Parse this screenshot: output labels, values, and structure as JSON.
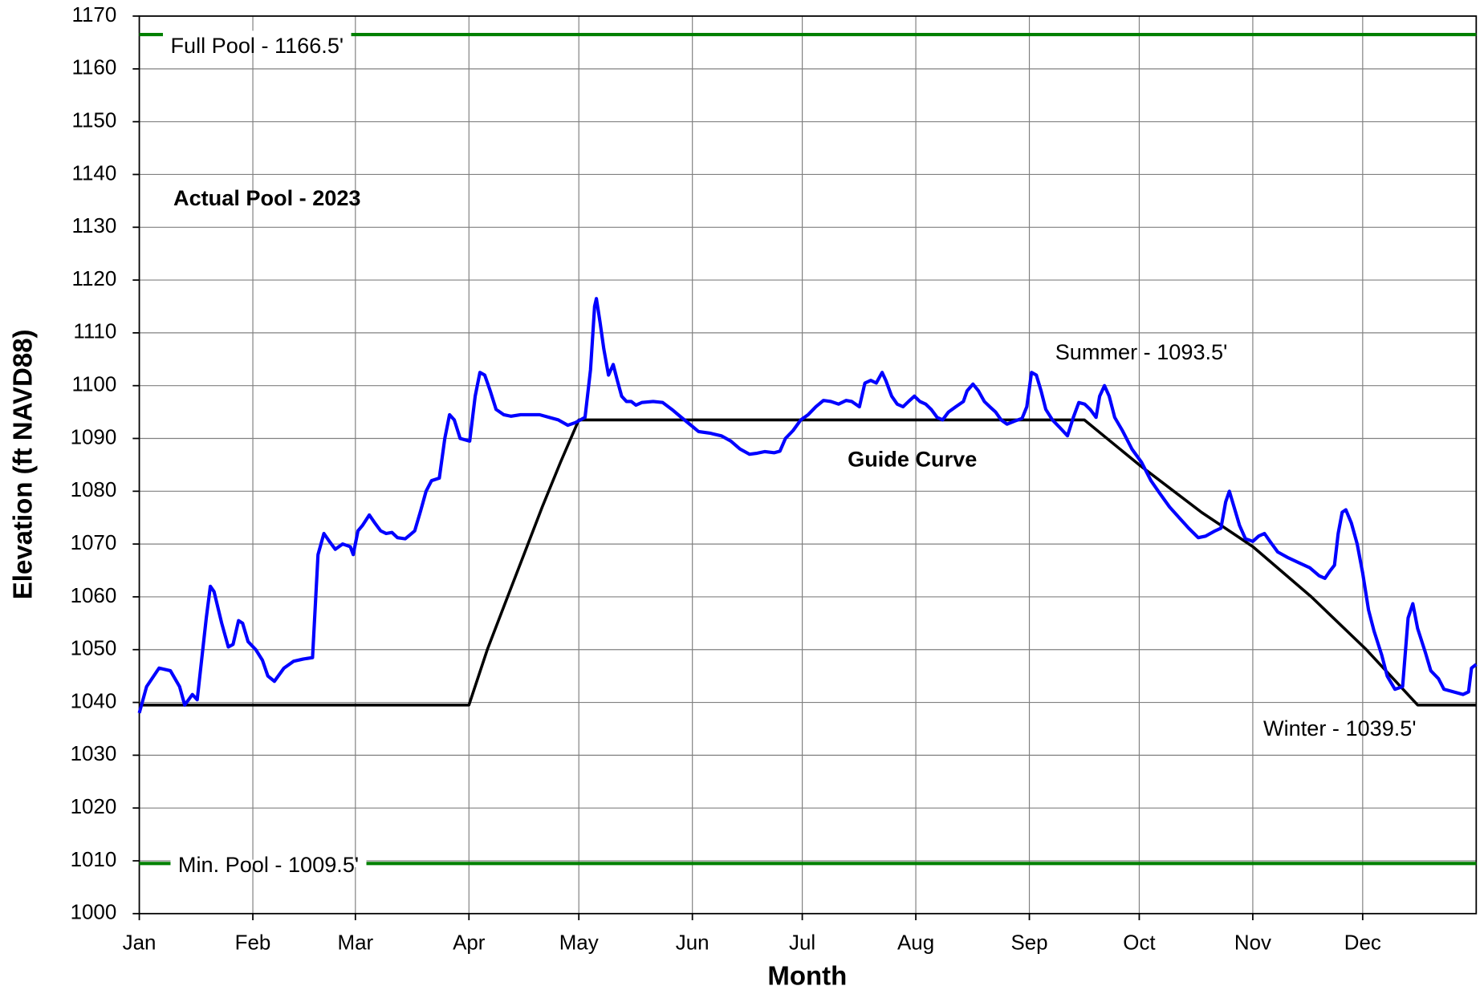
{
  "chart_data": {
    "type": "line",
    "xlabel": "Month",
    "ylabel": "Elevation (ft NAVD88)",
    "xlim": [
      0,
      365
    ],
    "ylim": [
      1000,
      1170
    ],
    "xticks": [
      {
        "value": 0,
        "label": "Jan"
      },
      {
        "value": 31,
        "label": "Feb"
      },
      {
        "value": 59,
        "label": "Mar"
      },
      {
        "value": 90,
        "label": "Apr"
      },
      {
        "value": 120,
        "label": "May"
      },
      {
        "value": 151,
        "label": "Jun"
      },
      {
        "value": 181,
        "label": "Jul"
      },
      {
        "value": 212,
        "label": "Aug"
      },
      {
        "value": 243,
        "label": "Sep"
      },
      {
        "value": 273,
        "label": "Oct"
      },
      {
        "value": 304,
        "label": "Nov"
      },
      {
        "value": 334,
        "label": "Dec"
      }
    ],
    "yticks": [
      1000,
      1010,
      1020,
      1030,
      1040,
      1050,
      1060,
      1070,
      1080,
      1090,
      1100,
      1110,
      1120,
      1130,
      1140,
      1150,
      1160,
      1170
    ],
    "grid": true,
    "series": [
      {
        "name": "Actual Pool - 2023",
        "color": "#0000ff",
        "x": [
          0,
          2,
          5.4,
          8.5,
          11,
          12.4,
          14.5,
          15.8,
          18.3,
          19.4,
          20.4,
          22.5,
          24.3,
          25.6,
          27.1,
          28.2,
          29.7,
          31.8,
          33.6,
          35.1,
          36.9,
          39.5,
          42.1,
          44.7,
          47.3,
          48.8,
          50.4,
          51.9,
          53.5,
          55.5,
          57.6,
          58.4,
          59.7,
          60.9,
          62.8,
          64.3,
          65.9,
          67.4,
          69,
          70.5,
          72.6,
          75.2,
          76.7,
          78.3,
          79.8,
          81.9,
          83.4,
          84.7,
          86,
          87.6,
          90.2,
          91.7,
          93,
          94.3,
          95.8,
          97.4,
          99.5,
          101.5,
          104.1,
          106.7,
          109.3,
          111.9,
          114.4,
          117,
          119.1,
          121.7,
          123.2,
          124.3,
          124.8,
          125.8,
          126.8,
          128.1,
          129.4,
          130.5,
          131.7,
          133,
          134.3,
          135.6,
          137.2,
          140.3,
          142.9,
          145.4,
          148,
          150.6,
          152.7,
          155.8,
          158.9,
          161.5,
          164,
          166.6,
          168.7,
          170.8,
          173.3,
          174.9,
          176.4,
          178.5,
          180.6,
          182.6,
          184.7,
          186.8,
          188.8,
          190.9,
          193,
          194.5,
          196.6,
          198.1,
          199.7,
          201.2,
          202.8,
          203.8,
          205.4,
          206.9,
          208.5,
          210,
          211.6,
          213.1,
          214.7,
          216.2,
          217.8,
          219.3,
          220.9,
          222.9,
          225,
          226,
          227.6,
          229.1,
          230.7,
          232.2,
          233.8,
          235.3,
          236.9,
          239,
          241,
          242.3,
          243.6,
          244.9,
          246.2,
          247.5,
          249.3,
          251.4,
          253.4,
          255,
          256.5,
          258.1,
          259.6,
          261.2,
          262.2,
          263.5,
          264.8,
          266.3,
          268.4,
          271,
          273.6,
          276.2,
          278.7,
          281.3,
          283.9,
          286.5,
          289.1,
          291.1,
          293.7,
          295.3,
          296.6,
          297.6,
          298.9,
          300.4,
          302,
          304,
          305.6,
          307.2,
          308.7,
          310.8,
          313.4,
          316.5,
          319.6,
          322.1,
          323.7,
          325.2,
          326.3,
          327.3,
          328.4,
          329.4,
          330.9,
          332.5,
          334,
          335.6,
          337.1,
          339.2,
          340.7,
          342.8,
          344.9,
          346.4,
          347.7,
          349,
          351.1,
          352.6,
          354.7,
          356.2,
          358.8,
          361.4,
          362.9,
          363.7,
          365
        ],
        "values": [
          1038,
          1043,
          1046.5,
          1046,
          1043,
          1039.5,
          1041.5,
          1040.5,
          1056,
          1062,
          1061,
          1055,
          1050.5,
          1051,
          1055.5,
          1055,
          1051.5,
          1050,
          1048,
          1045,
          1044,
          1046.5,
          1047.8,
          1048.2,
          1048.5,
          1068,
          1072,
          1070.5,
          1069,
          1070,
          1069.5,
          1068,
          1072.5,
          1073.5,
          1075.5,
          1074,
          1072.5,
          1072,
          1072.2,
          1071.2,
          1071,
          1072.5,
          1076,
          1080,
          1082,
          1082.5,
          1090,
          1094.5,
          1093.5,
          1090,
          1089.5,
          1098,
          1102.5,
          1102,
          1099,
          1095.5,
          1094.5,
          1094.2,
          1094.5,
          1094.5,
          1094.5,
          1094,
          1093.5,
          1092.5,
          1093,
          1094,
          1103,
          1115,
          1116.5,
          1112,
          1107,
          1102,
          1104,
          1101,
          1098,
          1097,
          1097,
          1096.3,
          1096.8,
          1097,
          1096.8,
          1095.5,
          1094,
          1092.5,
          1091.3,
          1091,
          1090.5,
          1089.5,
          1088,
          1087,
          1087.2,
          1087.5,
          1087.3,
          1087.6,
          1090,
          1091.5,
          1093.5,
          1094.5,
          1096,
          1097.2,
          1097,
          1096.5,
          1097.2,
          1097,
          1096,
          1100.5,
          1101,
          1100.5,
          1102.5,
          1101,
          1098,
          1096.5,
          1096,
          1097,
          1098,
          1097,
          1096.5,
          1095.5,
          1094,
          1093.5,
          1095,
          1096,
          1097,
          1099,
          1100.3,
          1099,
          1097,
          1096,
          1095,
          1093.5,
          1092.7,
          1093.3,
          1093.8,
          1096,
          1102.5,
          1102,
          1099,
          1095.5,
          1093.5,
          1092,
          1090.5,
          1094,
          1096.8,
          1096.5,
          1095.5,
          1094,
          1098,
          1100,
          1098,
          1094,
          1091.5,
          1088,
          1085.5,
          1082,
          1079.5,
          1077,
          1075,
          1073,
          1071.2,
          1071.5,
          1072.5,
          1073,
          1078,
          1080,
          1077,
          1073.5,
          1071,
          1070.5,
          1071.5,
          1072,
          1070.5,
          1068.5,
          1067.5,
          1066.5,
          1065.5,
          1064,
          1063.5,
          1065,
          1066,
          1072,
          1076,
          1076.5,
          1074,
          1070,
          1064.5,
          1057.5,
          1053.5,
          1049,
          1045,
          1042.5,
          1043,
          1056,
          1058.7,
          1054,
          1049.5,
          1046,
          1044.5,
          1042.5,
          1042,
          1041.5,
          1042,
          1046.5,
          1047.2
        ]
      },
      {
        "name": "Guide Curve",
        "color": "#000000",
        "x": [
          0,
          90,
          95,
          100,
          105,
          110,
          115,
          120,
          258,
          273,
          290,
          304,
          320,
          335,
          349,
          365
        ],
        "values": [
          1039.5,
          1039.5,
          1050,
          1059,
          1068,
          1077,
          1085.5,
          1093.5,
          1093.5,
          1085,
          1076,
          1069.5,
          1060,
          1050,
          1039.5,
          1039.5
        ]
      },
      {
        "name": "Full Pool - 1166.5'",
        "color": "#008000",
        "x": [
          0,
          365
        ],
        "values": [
          1166.5,
          1166.5
        ]
      },
      {
        "name": "Min. Pool - 1009.5'",
        "color": "#008000",
        "x": [
          0,
          365
        ],
        "values": [
          1009.5,
          1009.5
        ]
      }
    ],
    "annotations": [
      "Summer - 1093.5'",
      "Winter - 1039.5'"
    ]
  }
}
